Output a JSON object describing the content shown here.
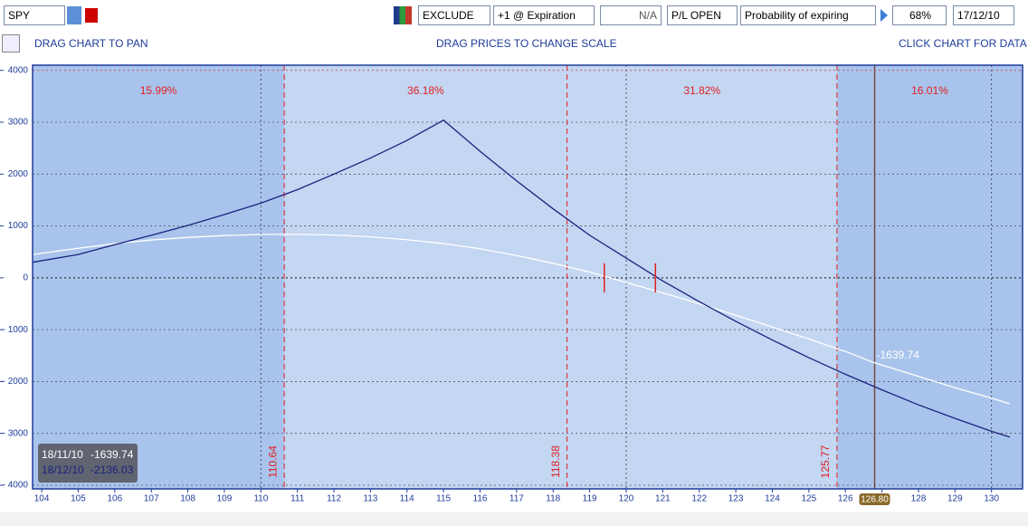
{
  "toolbar": {
    "symbol": "SPY",
    "mode": "EXCLUDE",
    "expiration": "+1 @ Expiration",
    "na": "N/A",
    "pl": "P/L OPEN",
    "probability": "Probability of expiring",
    "percent": "68%",
    "date": "17/12/10"
  },
  "hints": {
    "left": "DRAG CHART TO PAN",
    "center": "DRAG PRICES TO CHANGE SCALE",
    "right": "CLICK CHART FOR DATA"
  },
  "chart_data": {
    "type": "line",
    "xlim": [
      103.75,
      130.85
    ],
    "ylim": [
      -4070,
      4100
    ],
    "xticks": [
      104,
      105,
      106,
      107,
      108,
      109,
      110,
      111,
      112,
      113,
      114,
      115,
      116,
      117,
      118,
      119,
      120,
      121,
      122,
      123,
      124,
      125,
      126,
      127,
      128,
      129,
      130
    ],
    "yticks": [
      4000,
      3000,
      2000,
      1000,
      0,
      {
        "value": -1000,
        "label": "- 1000"
      },
      {
        "value": -2000,
        "label": "- 2000"
      },
      {
        "value": -3000,
        "label": "- 3000"
      },
      {
        "value": -4000,
        "label": "- 4000"
      }
    ],
    "x_grid": [
      110,
      120,
      130
    ],
    "markers": [
      110.64,
      118.38,
      125.77
    ],
    "probabilities": [
      15.99,
      36.18,
      31.82,
      16.01
    ],
    "probability_labels": [
      "15.99%",
      "36.18%",
      "31.82%",
      "16.01%"
    ],
    "breakeven_marks": [
      119.4,
      120.8
    ],
    "cursor": {
      "x": 126.8,
      "x_label": "126.80",
      "values": [
        -1639.74,
        -2136.03
      ]
    },
    "series": [
      {
        "name": "18/11/10",
        "color": "#ffffff",
        "x": [
          103.75,
          105,
          106,
          107,
          108,
          109,
          110,
          111,
          112,
          113,
          114,
          115,
          116,
          117,
          118,
          119,
          120,
          121,
          122,
          123,
          124,
          125,
          126,
          126.8,
          128,
          129,
          130,
          130.5
        ],
        "values": [
          450,
          570,
          660,
          730,
          780,
          815,
          835,
          840,
          825,
          790,
          735,
          660,
          560,
          430,
          280,
          110,
          -90,
          -290,
          -500,
          -720,
          -950,
          -1180,
          -1420,
          -1640,
          -1900,
          -2120,
          -2320,
          -2430
        ]
      },
      {
        "name": "18/12/10",
        "color": "#1a237e",
        "x": [
          103.75,
          105,
          106,
          107,
          108,
          109,
          110,
          111,
          112,
          113,
          114,
          115,
          116,
          117,
          118,
          119,
          120,
          121,
          122,
          123,
          124,
          125,
          126,
          127,
          128,
          129,
          130,
          130.5
        ],
        "values": [
          300,
          450,
          640,
          820,
          1010,
          1220,
          1440,
          1700,
          2000,
          2310,
          2650,
          3040,
          2440,
          1870,
          1330,
          820,
          380,
          -60,
          -460,
          -840,
          -1200,
          -1540,
          -1860,
          -2160,
          -2450,
          -2710,
          -2960,
          -3070
        ]
      }
    ]
  }
}
